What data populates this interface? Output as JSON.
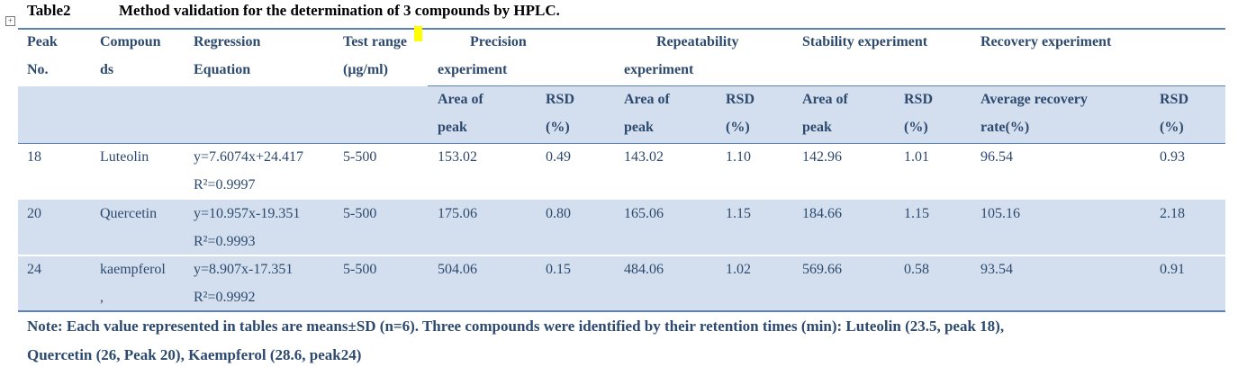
{
  "title": {
    "label": "Table2",
    "text": "Method validation for the determination of 3 compounds by HPLC."
  },
  "table": {
    "header_top": [
      [
        "Peak",
        "No."
      ],
      [
        "Compoun",
        "ds"
      ],
      [
        "Regression",
        "Equation"
      ],
      [
        "Test range",
        "(μg/ml)"
      ],
      [
        "Precision",
        "experiment"
      ],
      [
        "Repeatability",
        "experiment"
      ],
      [
        "Stability experiment"
      ],
      [
        "Recovery experiment"
      ]
    ],
    "header_sub": [
      [
        "Area of",
        "peak"
      ],
      [
        "RSD",
        "(%)"
      ],
      [
        "Area of",
        "peak"
      ],
      [
        "RSD",
        "(%)"
      ],
      [
        "Area of",
        "peak"
      ],
      [
        "RSD",
        "(%)"
      ],
      [
        "Average recovery",
        "rate(%)"
      ],
      [
        "RSD",
        "(%)"
      ]
    ],
    "rows": [
      [
        [
          "18"
        ],
        [
          "Luteolin"
        ],
        [
          "y=7.6074x+24.417",
          "R²=0.9997"
        ],
        [
          "5-500"
        ],
        [
          "153.02"
        ],
        [
          "0.49"
        ],
        [
          "143.02"
        ],
        [
          "1.10"
        ],
        [
          "142.96"
        ],
        [
          "1.01"
        ],
        [
          "96.54"
        ],
        [
          "0.93"
        ]
      ],
      [
        [
          "20"
        ],
        [
          "Quercetin"
        ],
        [
          "y=10.957x-19.351",
          "R²=0.9993"
        ],
        [
          "5-500"
        ],
        [
          "175.06"
        ],
        [
          "0.80"
        ],
        [
          "165.06"
        ],
        [
          "1.15"
        ],
        [
          "184.66"
        ],
        [
          "1.15"
        ],
        [
          "105.16"
        ],
        [
          "2.18"
        ]
      ],
      [
        [
          "24"
        ],
        [
          "kaempferol",
          ","
        ],
        [
          "y=8.907x-17.351",
          "R²=0.9992"
        ],
        [
          "5-500"
        ],
        [
          "504.06"
        ],
        [
          "0.15"
        ],
        [
          "484.06"
        ],
        [
          "1.02"
        ],
        [
          "569.66"
        ],
        [
          "0.58"
        ],
        [
          "93.54"
        ],
        [
          "0.91"
        ]
      ]
    ]
  },
  "note": [
    "Note: Each value represented in tables are means±SD (n=6). Three compounds were identified by their retention times (min): Luteolin (23.5, peak 18),",
    "Quercetin (26, Peak 20), Kaempferol (28.6, peak24)"
  ]
}
